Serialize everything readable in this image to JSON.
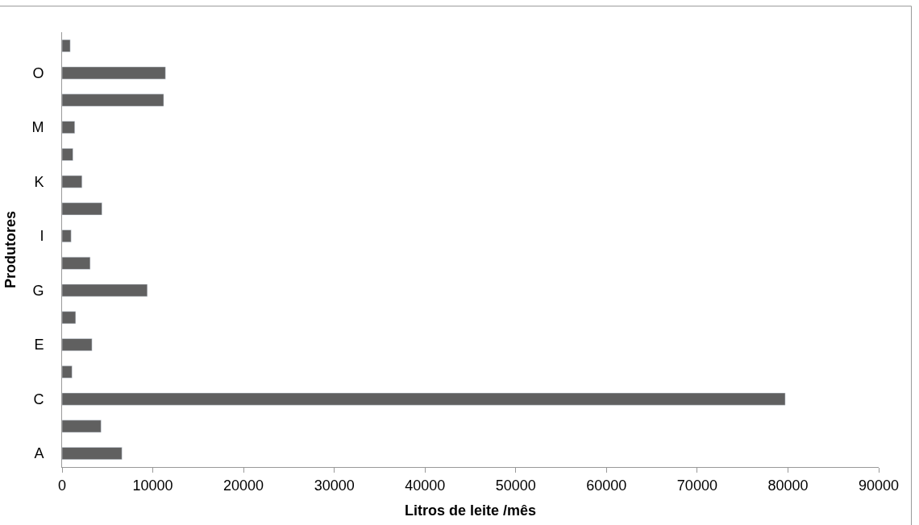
{
  "chart_data": {
    "type": "bar",
    "orientation": "horizontal",
    "xlabel": "Litros de leite /mês",
    "ylabel": "Produtores",
    "categories": [
      null,
      "O",
      null,
      "M",
      null,
      "K",
      null,
      "I",
      null,
      "G",
      null,
      "E",
      null,
      "C",
      null,
      "A"
    ],
    "values": [
      900,
      11400,
      11200,
      1400,
      1200,
      2200,
      4400,
      1000,
      3100,
      9400,
      1500,
      3300,
      1100,
      79700,
      4300,
      6600
    ],
    "color": "#606060",
    "xlim": [
      0,
      90000
    ],
    "xticks": [
      0,
      10000,
      20000,
      30000,
      40000,
      50000,
      60000,
      70000,
      80000,
      90000
    ]
  }
}
